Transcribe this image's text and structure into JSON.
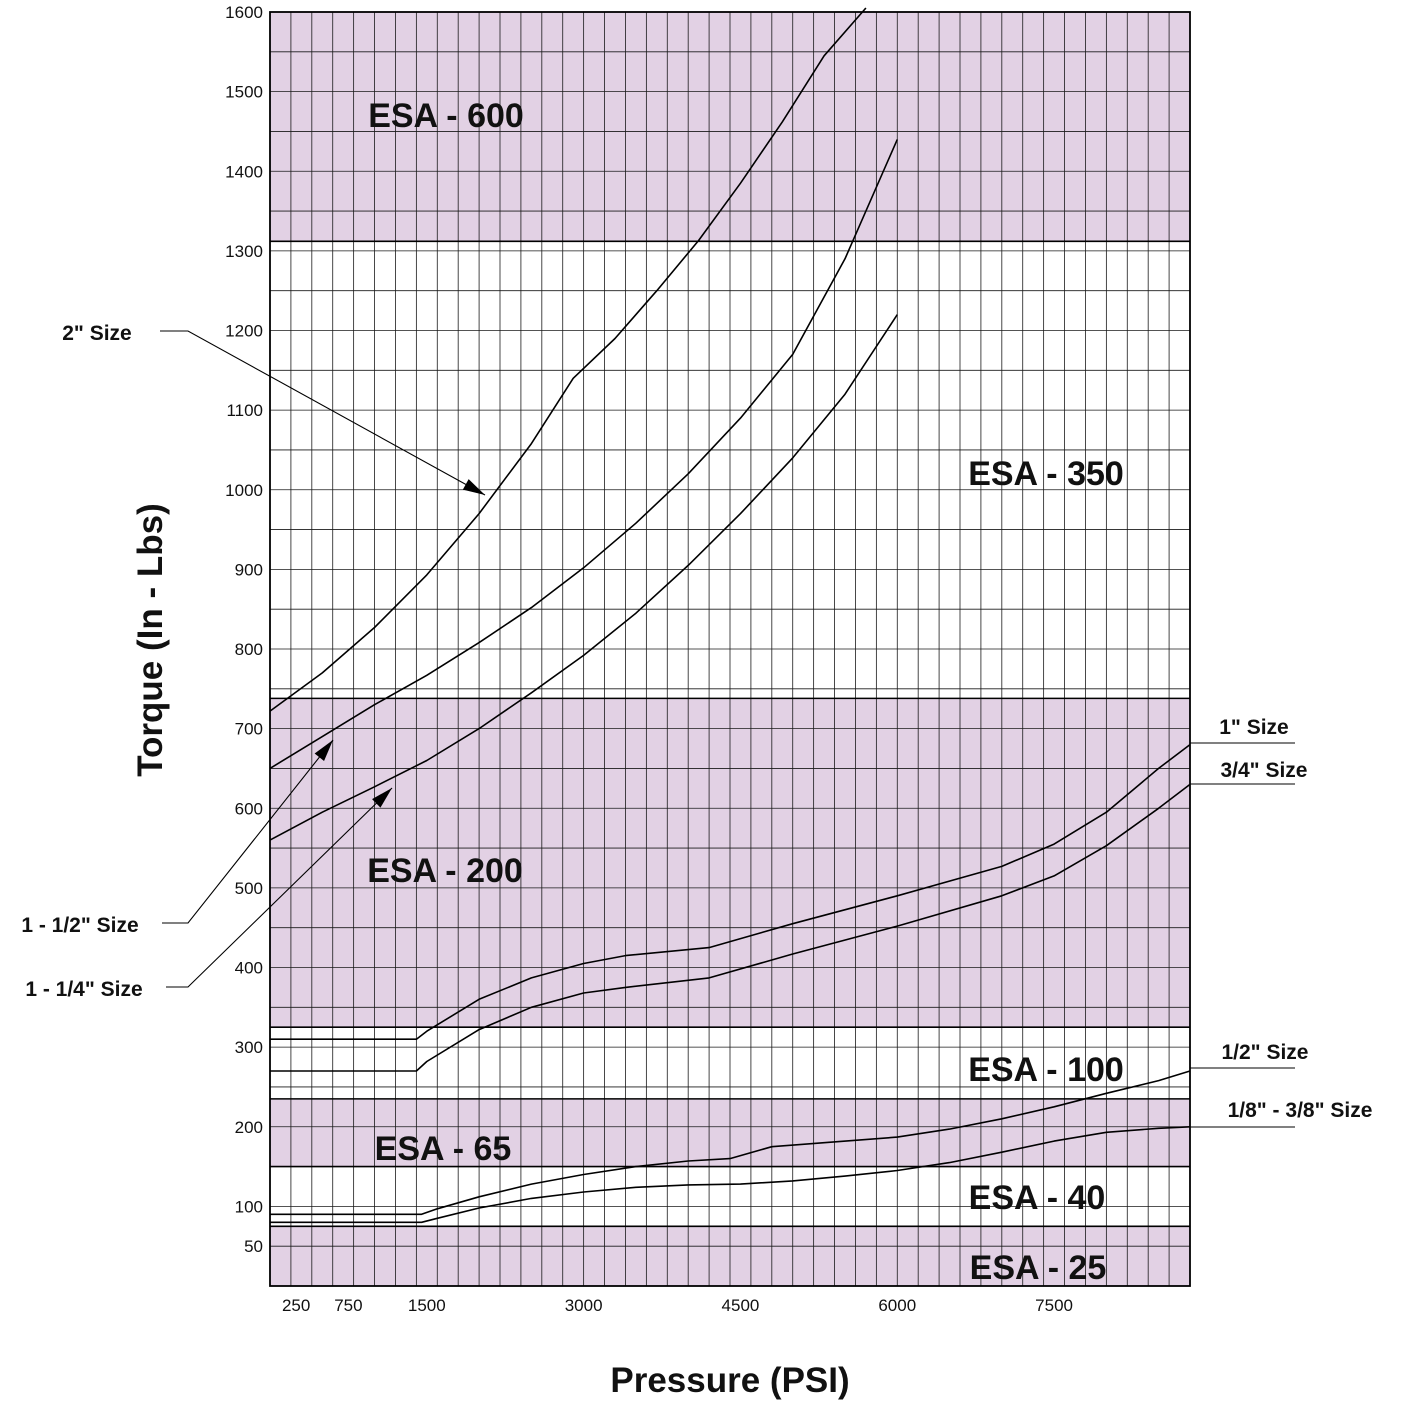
{
  "chart_data": {
    "type": "line",
    "xlabel": "Pressure (PSI)",
    "ylabel": "Torque (In - Lbs)",
    "xlim": [
      0,
      8800
    ],
    "ylim": [
      0,
      1600
    ],
    "x_ticks": [
      250,
      750,
      1500,
      3000,
      4500,
      6000,
      7500
    ],
    "y_ticks": [
      50,
      100,
      200,
      300,
      400,
      500,
      600,
      700,
      800,
      900,
      1000,
      1100,
      1200,
      1300,
      1400,
      1500,
      1600
    ],
    "grid": true,
    "bands": [
      {
        "label": "ESA - 600",
        "from": 1312,
        "to": 1600,
        "color": "#e2d1e4"
      },
      {
        "label": "ESA - 350",
        "from": 738,
        "to": 1312,
        "color": "#ffffff"
      },
      {
        "label": "ESA - 200",
        "from": 325,
        "to": 738,
        "color": "#e2d1e4"
      },
      {
        "label": "ESA - 100",
        "from": 235,
        "to": 325,
        "color": "#ffffff"
      },
      {
        "label": "ESA - 65",
        "from": 150,
        "to": 235,
        "color": "#e2d1e4"
      },
      {
        "label": "ESA - 40",
        "from": 75,
        "to": 150,
        "color": "#ffffff"
      },
      {
        "label": "ESA - 25",
        "from": 0,
        "to": 75,
        "color": "#e2d1e4"
      }
    ],
    "series": [
      {
        "name": "2\" Size",
        "x": [
          0,
          500,
          1000,
          1500,
          2000,
          2500,
          2900,
          3300,
          3700,
          4100,
          4500,
          4900,
          5300,
          5700
        ],
        "y": [
          722,
          770,
          827,
          893,
          970,
          1058,
          1140,
          1190,
          1250,
          1313,
          1385,
          1462,
          1545,
          1605
        ]
      },
      {
        "name": "1 - 1/2\" Size",
        "x": [
          0,
          500,
          1000,
          1500,
          2000,
          2500,
          3000,
          3500,
          4000,
          4500,
          5000,
          5500,
          6000
        ],
        "y": [
          650,
          690,
          730,
          767,
          808,
          852,
          902,
          958,
          1020,
          1090,
          1170,
          1290,
          1440
        ]
      },
      {
        "name": "1 - 1/4\" Size",
        "x": [
          0,
          500,
          1000,
          1500,
          2000,
          2500,
          3000,
          3500,
          4000,
          4500,
          5000,
          5500,
          6000
        ],
        "y": [
          560,
          595,
          627,
          660,
          700,
          745,
          792,
          845,
          905,
          970,
          1040,
          1120,
          1220
        ]
      },
      {
        "name": "1\" Size",
        "x": [
          0,
          1400,
          1500,
          2000,
          2500,
          3000,
          3400,
          4200,
          5000,
          6000,
          7000,
          7500,
          8000,
          8500,
          8800
        ],
        "y": [
          310,
          310,
          320,
          360,
          387,
          405,
          415,
          425,
          455,
          490,
          527,
          555,
          595,
          650,
          680
        ]
      },
      {
        "name": "3/4\" Size",
        "x": [
          0,
          1400,
          1500,
          2000,
          2500,
          3000,
          3400,
          4200,
          5000,
          6000,
          7000,
          7500,
          8000,
          8500,
          8800
        ],
        "y": [
          270,
          270,
          282,
          322,
          350,
          368,
          375,
          387,
          417,
          452,
          490,
          515,
          553,
          600,
          630
        ]
      },
      {
        "name": "1/2\" Size",
        "x": [
          0,
          1450,
          1600,
          2000,
          2500,
          3000,
          3500,
          4000,
          4400,
          4800,
          5300,
          6000,
          6500,
          7000,
          7500,
          8000,
          8500,
          8800
        ],
        "y": [
          90,
          90,
          97,
          112,
          128,
          140,
          150,
          157,
          160,
          175,
          180,
          187,
          197,
          210,
          225,
          242,
          258,
          270
        ]
      },
      {
        "name": "1/8\" - 3/8\" Size",
        "x": [
          0,
          1450,
          1600,
          2000,
          2500,
          3000,
          3500,
          4000,
          4500,
          5000,
          5500,
          6000,
          6500,
          7000,
          7500,
          8000,
          8500,
          8800
        ],
        "y": [
          80,
          80,
          85,
          98,
          110,
          118,
          124,
          127,
          128,
          132,
          138,
          145,
          155,
          168,
          182,
          193,
          198,
          200
        ]
      }
    ]
  }
}
